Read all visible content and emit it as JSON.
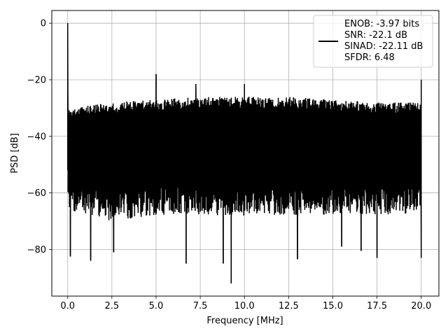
{
  "chart_data": {
    "type": "line",
    "title": "",
    "xlabel": "Frequency [MHz]",
    "ylabel": "PSD [dB]",
    "xlim": [
      -0.9,
      21.0
    ],
    "ylim": [
      -96.5,
      4.5
    ],
    "xticks": [
      0.0,
      2.5,
      5.0,
      7.5,
      10.0,
      12.5,
      15.0,
      17.5,
      20.0
    ],
    "xtick_labels": [
      "0.0",
      "2.5",
      "5.0",
      "7.5",
      "10.0",
      "12.5",
      "15.0",
      "17.5",
      "20.0"
    ],
    "yticks": [
      0,
      -20,
      -40,
      -60,
      -80
    ],
    "ytick_labels": [
      "0",
      "−20",
      "−40",
      "−60",
      "−80"
    ],
    "grid": true,
    "legend_position": "top-right",
    "legend_entries": [
      "ENOB: -3.97 bits",
      "SNR: -22.1 dB",
      "SINAD: -22.11 dB",
      "SFDR: 6.48"
    ],
    "series": [
      {
        "color": "#000000",
        "noise_band_upper_db": [
          [
            0.0,
            -29
          ],
          [
            2.5,
            -27
          ],
          [
            5.0,
            -26
          ],
          [
            7.5,
            -25
          ],
          [
            10.0,
            -25
          ],
          [
            12.5,
            -25
          ],
          [
            15.0,
            -26
          ],
          [
            17.5,
            -27
          ],
          [
            20.0,
            -27
          ]
        ],
        "noise_band_lower_db": [
          [
            0.0,
            -66
          ],
          [
            2.5,
            -70
          ],
          [
            5.0,
            -68
          ],
          [
            7.5,
            -68
          ],
          [
            10.0,
            -68
          ],
          [
            12.5,
            -68
          ],
          [
            15.0,
            -68
          ],
          [
            17.5,
            -68
          ],
          [
            20.0,
            -67
          ]
        ],
        "peaks": [
          [
            0.0,
            0.0
          ],
          [
            5.0,
            -18.0
          ],
          [
            7.25,
            -21.5
          ],
          [
            10.0,
            -21.5
          ],
          [
            20.0,
            -20.0
          ]
        ],
        "dips": [
          [
            0.15,
            -82.5
          ],
          [
            1.3,
            -84.0
          ],
          [
            2.6,
            -81.0
          ],
          [
            6.7,
            -85.0
          ],
          [
            8.8,
            -85.0
          ],
          [
            9.25,
            -92.0
          ],
          [
            13.0,
            -83.5
          ],
          [
            15.5,
            -79.0
          ],
          [
            16.6,
            -80.5
          ],
          [
            17.5,
            -83.0
          ],
          [
            20.0,
            -83.0
          ]
        ]
      }
    ]
  }
}
